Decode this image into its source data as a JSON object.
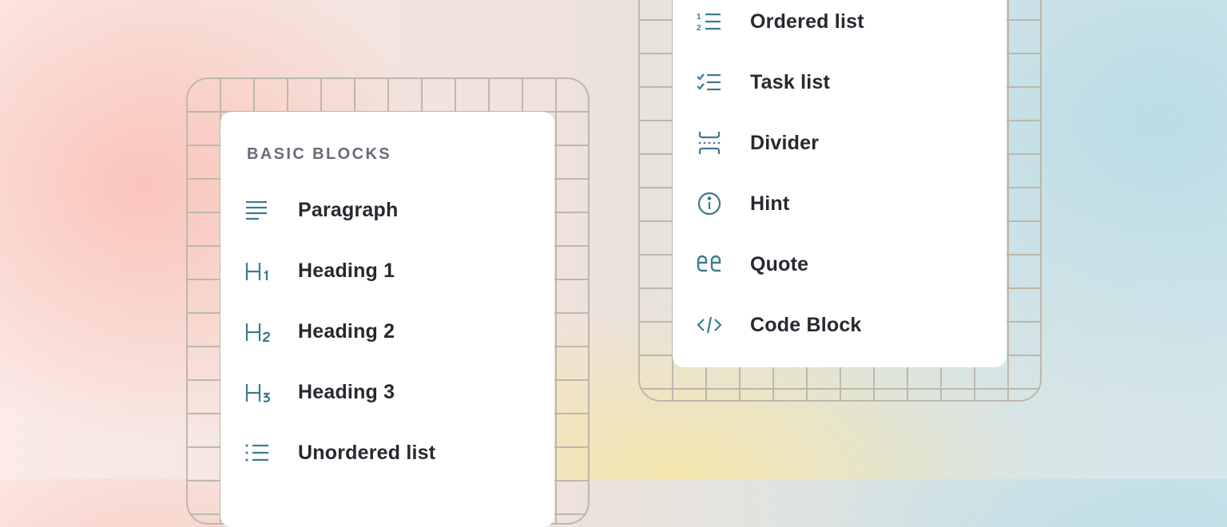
{
  "accent_color": "#3b7b90",
  "left_menu": {
    "section_title": "BASIC BLOCKS",
    "items": [
      {
        "label": "Paragraph",
        "icon": "paragraph-icon"
      },
      {
        "label": "Heading 1",
        "icon": "heading-1-icon"
      },
      {
        "label": "Heading 2",
        "icon": "heading-2-icon"
      },
      {
        "label": "Heading 3",
        "icon": "heading-3-icon"
      },
      {
        "label": "Unordered list",
        "icon": "unordered-list-icon"
      }
    ]
  },
  "right_menu": {
    "items": [
      {
        "label": "Ordered list",
        "icon": "ordered-list-icon"
      },
      {
        "label": "Task list",
        "icon": "task-list-icon"
      },
      {
        "label": "Divider",
        "icon": "divider-icon"
      },
      {
        "label": "Hint",
        "icon": "info-icon"
      },
      {
        "label": "Quote",
        "icon": "quote-icon"
      },
      {
        "label": "Code Block",
        "icon": "code-icon"
      }
    ]
  }
}
